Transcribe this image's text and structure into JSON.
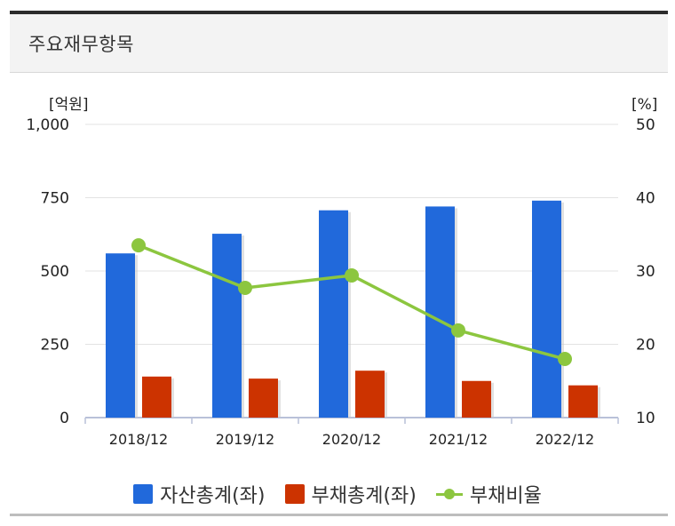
{
  "panel": {
    "title": "주요재무항목"
  },
  "colors": {
    "assets": "#2169db",
    "liabilities": "#cc3300",
    "ratio": "#8cc63f",
    "grid": "#e3e3e3",
    "axis": "#b9c1d9"
  },
  "chart_data": {
    "type": "bar",
    "categories": [
      "2018/12",
      "2019/12",
      "2020/12",
      "2021/12",
      "2022/12"
    ],
    "y_left": {
      "unit_label": "[억원]",
      "range": [
        0,
        1000
      ],
      "ticks": [
        0,
        250,
        500,
        750,
        1000
      ],
      "tick_labels": [
        "0",
        "250",
        "500",
        "750",
        "1,000"
      ]
    },
    "y_right": {
      "unit_label": "[%]",
      "range": [
        10,
        50
      ],
      "ticks": [
        10,
        20,
        30,
        40,
        50
      ],
      "tick_labels": [
        "10",
        "20",
        "30",
        "40",
        "50"
      ]
    },
    "series": [
      {
        "name": "자산총계(좌)",
        "kind": "bar",
        "axis": "left",
        "color": "#2169db",
        "values": [
          560,
          627,
          707,
          720,
          740
        ]
      },
      {
        "name": "부채총계(좌)",
        "kind": "bar",
        "axis": "left",
        "color": "#cc3300",
        "values": [
          140,
          133,
          160,
          125,
          110
        ]
      },
      {
        "name": "부채비율",
        "kind": "line",
        "axis": "right",
        "color": "#8cc63f",
        "values": [
          33.5,
          27.7,
          29.4,
          21.9,
          18.0
        ]
      }
    ],
    "grid": true,
    "legend_position": "bottom"
  }
}
